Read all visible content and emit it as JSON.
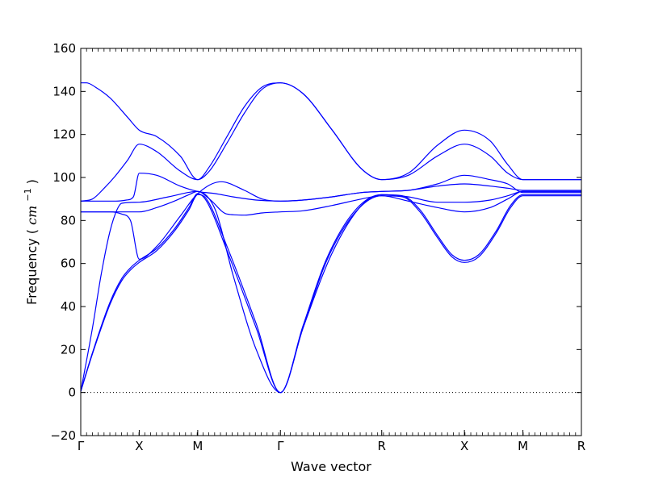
{
  "chart_data": {
    "type": "line",
    "title": "",
    "xlabel": "Wave vector",
    "ylabel": "Frequency",
    "ylabel_unit_base": "cm",
    "ylabel_unit_exp": "−1",
    "ylim": [
      -20,
      160
    ],
    "yticks": [
      -20,
      0,
      20,
      40,
      60,
      80,
      100,
      120,
      140,
      160
    ],
    "kpoints": [
      {
        "label": "Γ",
        "x": 0
      },
      {
        "label": "X",
        "x": 1
      },
      {
        "label": "M",
        "x": 2
      },
      {
        "label": "Γ",
        "x": 3.414
      },
      {
        "label": "R",
        "x": 5.146
      },
      {
        "label": "X",
        "x": 6.56
      },
      {
        "label": "M",
        "x": 7.56
      },
      {
        "label": "R",
        "x": 8.56
      }
    ],
    "xlim": [
      0,
      8.56
    ],
    "zero_line": true,
    "grid": false,
    "line_color": "#0000ff",
    "series": [
      {
        "x": [
          0,
          0.2,
          0.5,
          0.7,
          0.85,
          1,
          1.3,
          1.6,
          1.85,
          2,
          2.15,
          2.5,
          3.0,
          3.414,
          3.8,
          4.2,
          4.7,
          5.146,
          5.5,
          5.8,
          6.1,
          6.35,
          6.56,
          6.8,
          7.1,
          7.35,
          7.56,
          8.0,
          8.56
        ],
        "y": [
          0.5,
          18,
          41,
          52,
          57,
          60.5,
          66,
          75,
          85,
          92,
          90,
          68,
          32,
          0,
          30,
          61,
          84,
          91.5,
          91,
          84,
          72,
          63,
          60.5,
          63,
          74,
          86,
          91.5,
          91.5,
          91.5
        ]
      },
      {
        "x": [
          0,
          0.2,
          0.5,
          0.7,
          0.85,
          1,
          1.3,
          1.6,
          1.85,
          2,
          2.15,
          2.5,
          3.0,
          3.414,
          3.8,
          4.2,
          4.7,
          5.146,
          5.5,
          5.8,
          6.1,
          6.35,
          6.56,
          6.8,
          7.1,
          7.35,
          7.56,
          8.0,
          8.56
        ],
        "y": [
          0.8,
          18.5,
          42,
          53,
          58,
          61.5,
          67,
          76,
          86,
          92.5,
          89,
          66,
          30,
          0,
          31,
          62,
          85,
          92,
          91.5,
          85,
          73,
          64,
          61.5,
          64,
          75,
          87,
          92,
          92,
          92
        ]
      },
      {
        "x": [
          0,
          0.2,
          0.35,
          0.5,
          0.62,
          0.7,
          1,
          1.5,
          2,
          2.3,
          2.6,
          3.0,
          3.414,
          3.8,
          4.3,
          4.8,
          5.146,
          5.6,
          6.1,
          6.56,
          7.0,
          7.3,
          7.56,
          8.0,
          8.56
        ],
        "y": [
          0.5,
          30,
          55,
          75,
          85,
          88,
          88.5,
          91,
          93.5,
          85,
          55,
          20,
          0,
          30,
          65,
          87,
          92,
          91,
          88.5,
          88.5,
          89.5,
          91.5,
          93.5,
          93.5,
          93.5
        ]
      },
      {
        "x": [
          0,
          0.3,
          0.6,
          0.75,
          0.9,
          1,
          1.3,
          1.6,
          1.85,
          2,
          2.2,
          2.5,
          2.8,
          3.1,
          3.414,
          3.8,
          4.3,
          4.8,
          5.146,
          5.6,
          6.1,
          6.56,
          7.0,
          7.3,
          7.56,
          8.0,
          8.56
        ],
        "y": [
          84,
          84,
          84,
          84,
          84,
          84,
          86,
          89,
          92,
          93.5,
          90,
          83,
          82.5,
          83.5,
          84,
          84.5,
          87,
          90,
          91.5,
          89,
          86,
          84,
          86,
          90,
          93.5,
          93.5,
          93.5
        ]
      },
      {
        "x": [
          0,
          0.3,
          0.5,
          0.7,
          0.85,
          1,
          1.3,
          1.7,
          2,
          2.4,
          2.8,
          3.1,
          3.414,
          3.8,
          4.3,
          4.8,
          5.146,
          5.6,
          6.1,
          6.56,
          7.0,
          7.3,
          7.56,
          8.0,
          8.56
        ],
        "y": [
          84,
          84,
          84,
          83,
          80,
          62,
          68,
          82,
          92.5,
          98,
          94,
          90,
          89,
          89.5,
          91,
          93,
          93.5,
          94,
          97,
          101,
          99,
          97,
          93,
          93,
          93
        ]
      },
      {
        "x": [
          0,
          0.3,
          0.6,
          0.78,
          0.9,
          1,
          1.3,
          1.7,
          2,
          2.3,
          2.6,
          3.0,
          3.414,
          3.8,
          4.3,
          4.8,
          5.146,
          5.6,
          6.1,
          6.56,
          7.0,
          7.3,
          7.56,
          8.0,
          8.56
        ],
        "y": [
          89,
          89,
          89,
          89.5,
          91,
          102,
          101,
          96,
          93.5,
          92.5,
          91,
          89.5,
          89,
          89.5,
          91,
          93,
          93.5,
          94,
          96,
          97,
          96,
          95,
          94,
          94,
          94
        ]
      },
      {
        "x": [
          0,
          0.2,
          0.4,
          0.6,
          0.8,
          1,
          1.3,
          1.7,
          2,
          2.2,
          2.5,
          2.8,
          3.1,
          3.414,
          3.8,
          4.3,
          4.8,
          5.146,
          5.6,
          6.1,
          6.56,
          7.0,
          7.3,
          7.56,
          8.0,
          8.56
        ],
        "y": [
          89,
          90,
          95,
          101,
          108,
          115.5,
          112,
          103,
          99,
          103,
          116,
          130,
          141,
          144,
          139,
          122,
          104,
          99,
          101,
          110,
          115.5,
          110,
          102,
          99,
          99,
          99
        ]
      },
      {
        "x": [
          0,
          0.1,
          0.25,
          0.5,
          0.8,
          1,
          1.3,
          1.7,
          2,
          2.2,
          2.5,
          2.8,
          3.1,
          3.414,
          3.8,
          4.3,
          4.8,
          5.146,
          5.6,
          6.1,
          6.56,
          7.0,
          7.3,
          7.56,
          8.0,
          8.56
        ],
        "y": [
          144,
          144,
          142,
          137,
          128,
          122,
          119,
          110,
          99,
          105,
          119,
          133,
          142,
          144,
          139,
          122,
          104,
          99,
          102,
          115,
          122,
          117,
          106,
          99,
          99,
          99
        ]
      }
    ]
  }
}
